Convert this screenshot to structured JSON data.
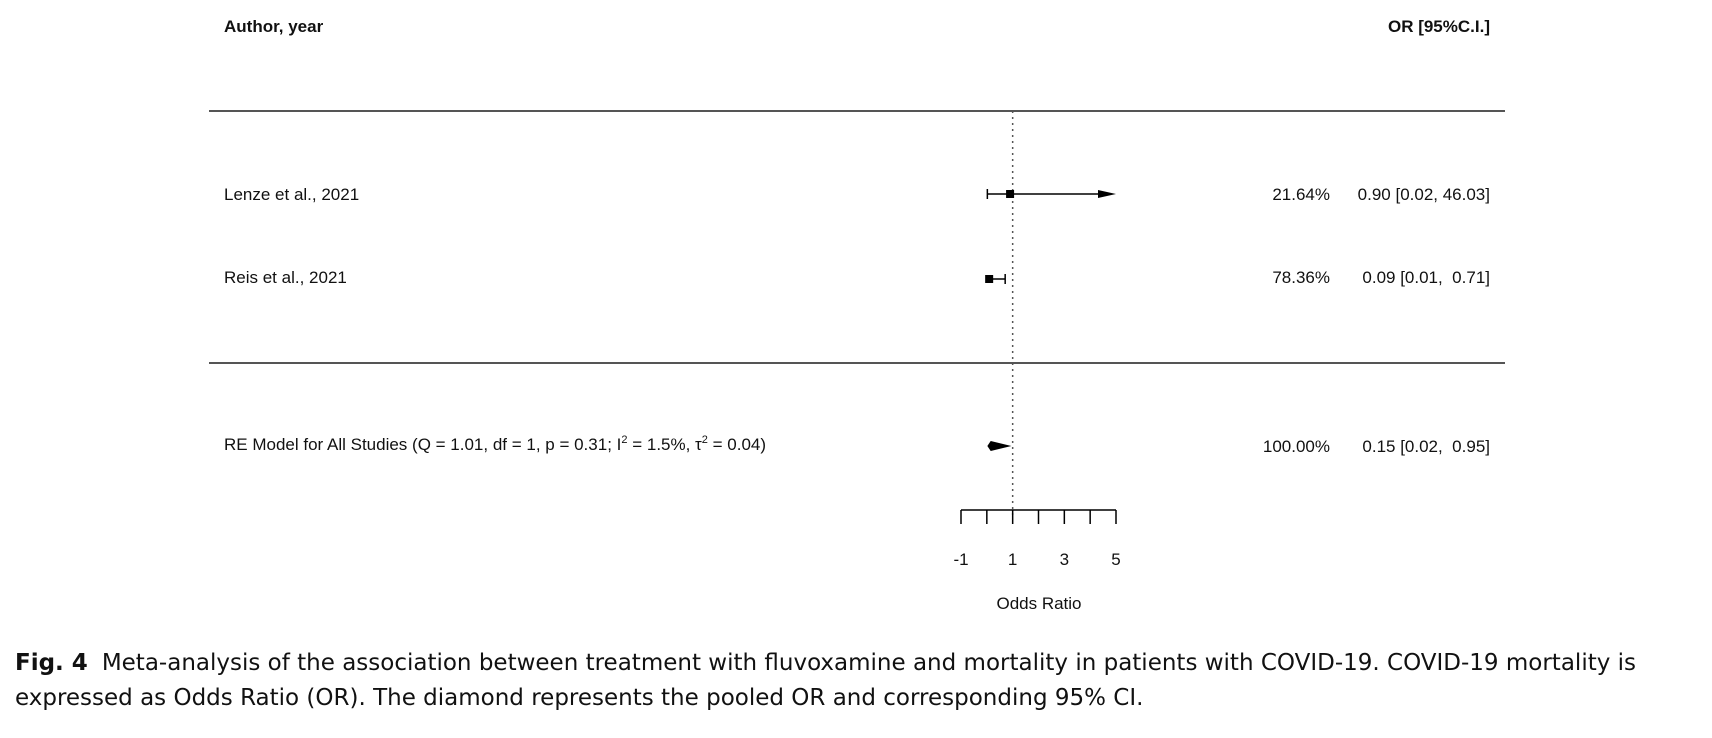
{
  "chart_data": {
    "type": "forest",
    "header": {
      "study": "Author, year",
      "estimate": "OR [95%C.I.]"
    },
    "studies": [
      {
        "label": "Lenze et al., 2021",
        "weight": "21.64%",
        "or_text": "0.90 [0.02, 46.03]",
        "or": 0.9,
        "ci_low": 0.02,
        "ci_high": 46.03,
        "arrow_right": true
      },
      {
        "label": "Reis et al., 2021",
        "weight": "78.36%",
        "or_text": "0.09 [0.01,  0.71]",
        "or": 0.09,
        "ci_low": 0.01,
        "ci_high": 0.71,
        "arrow_right": false
      }
    ],
    "summary": {
      "label": "RE Model for All Studies (Q = 1.01, df = 1, p = 0.31; I",
      "sup1": "2",
      "label_mid": " = 1.5%, τ",
      "sup2": "2",
      "label_end": " = 0.04)",
      "weight": "100.00%",
      "or_text": "0.15 [0.02,  0.95]",
      "or": 0.15,
      "ci_low": 0.02,
      "ci_high": 0.95
    },
    "xaxis": {
      "label": "Odds Ratio",
      "range": [
        -1,
        5
      ],
      "ticks": [
        -1,
        0,
        1,
        2,
        3,
        4,
        5
      ],
      "tick_labels": [
        "-1",
        "1",
        "3",
        "5"
      ],
      "reference_line": 1
    }
  },
  "caption": {
    "fig": "Fig. 4",
    "text": "Meta-analysis of the association between treatment with fluvoxamine and mortality in patients with COVID-19. COVID-19 mortality is expressed as Odds Ratio (OR). The diamond represents the pooled OR and corresponding 95% CI."
  }
}
